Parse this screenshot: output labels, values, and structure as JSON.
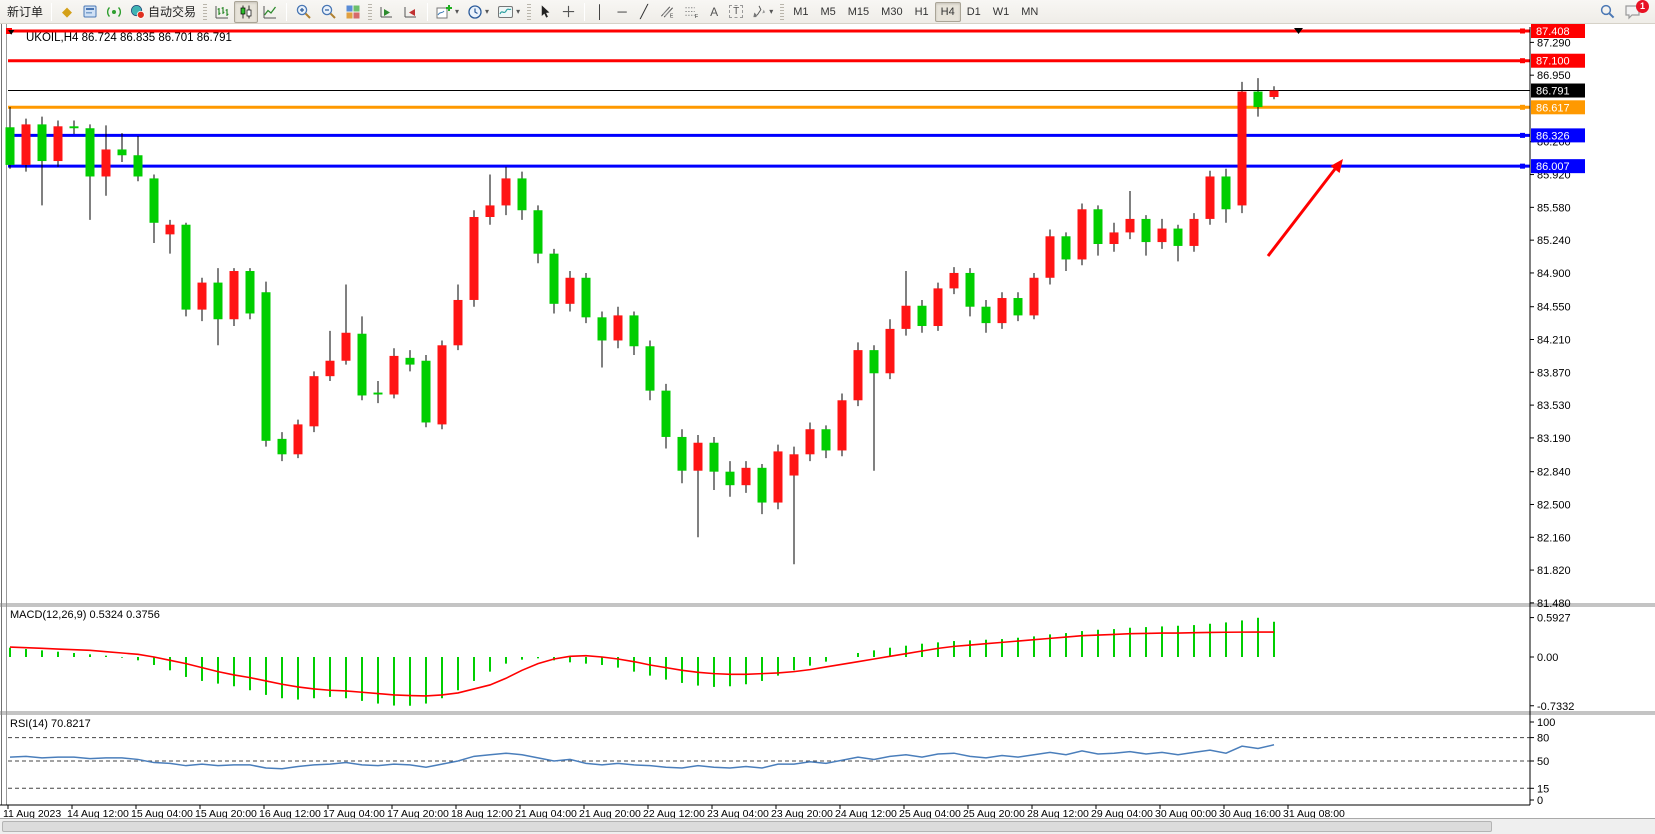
{
  "toolbar": {
    "new_order_label": "新订单",
    "auto_trading_label": "自动交易",
    "timeframes": [
      "M1",
      "M5",
      "M15",
      "M30",
      "H1",
      "H4",
      "D1",
      "W1",
      "MN"
    ],
    "active_timeframe": "H4",
    "notification_count": "1",
    "icons": {
      "market_watch": "◆",
      "crosshair": "┼",
      "vertical_line": "│",
      "horizontal_line": "─",
      "trend_line": "╱",
      "channel": "∥",
      "fibonacci": "F",
      "text_tool": "A",
      "text_label_tool": "T",
      "shapes_tool": "✦",
      "dropdown_caret": "▾"
    }
  },
  "chart": {
    "title": "UKOIL,H4 86.724 86.835 86.701 86.791",
    "symbol": "UKOIL,H4",
    "ohlc_text": "86.724 86.835 86.701 86.791",
    "macd_label": "MACD(12,26,9) 0.5324 0.3756",
    "rsi_label": "RSI(14) 70.8217",
    "price_axis_ticks": [
      "87.290",
      "86.950",
      "86.260",
      "85.920",
      "85.580",
      "85.240",
      "84.900",
      "84.550",
      "84.210",
      "83.870",
      "83.530",
      "83.190",
      "82.840",
      "82.500",
      "82.160",
      "81.820",
      "81.480"
    ],
    "macd_axis_ticks": [
      "0.5927",
      "0.00",
      "-0.7332"
    ],
    "rsi_axis_ticks": [
      "100",
      "80",
      "50",
      "15",
      "0"
    ],
    "time_axis_labels": [
      "11 Aug 2023",
      "14 Aug 12:00",
      "15 Aug 04:00",
      "15 Aug 20:00",
      "16 Aug 12:00",
      "17 Aug 04:00",
      "17 Aug 20:00",
      "18 Aug 12:00",
      "21 Aug 04:00",
      "21 Aug 20:00",
      "22 Aug 12:00",
      "23 Aug 04:00",
      "23 Aug 20:00",
      "24 Aug 12:00",
      "25 Aug 04:00",
      "25 Aug 20:00",
      "28 Aug 12:00",
      "29 Aug 04:00",
      "30 Aug 00:00",
      "30 Aug 16:00",
      "31 Aug 08:00"
    ],
    "price_badges": [
      {
        "label": "87.408",
        "price": 87.408,
        "bg": "#ff0000",
        "fg": "#ffffff"
      },
      {
        "label": "87.100",
        "price": 87.1,
        "bg": "#ff0000",
        "fg": "#ffffff"
      },
      {
        "label": "86.791",
        "price": 86.791,
        "bg": "#000000",
        "fg": "#ffffff"
      },
      {
        "label": "86.617",
        "price": 86.617,
        "bg": "#ff9900",
        "fg": "#ffffff"
      },
      {
        "label": "86.326",
        "price": 86.326,
        "bg": "#0000ff",
        "fg": "#ffffff"
      },
      {
        "label": "86.007",
        "price": 86.007,
        "bg": "#0000ff",
        "fg": "#ffffff"
      }
    ],
    "hlines": [
      {
        "price": 87.408,
        "color": "#ff0000",
        "width": 3,
        "handle": true
      },
      {
        "price": 87.1,
        "color": "#ff0000",
        "width": 3,
        "handle": true
      },
      {
        "price": 86.791,
        "color": "#000000",
        "width": 1,
        "handle": false
      },
      {
        "price": 86.617,
        "color": "#ff9900",
        "width": 3,
        "handle": true
      },
      {
        "price": 86.326,
        "color": "#0000ff",
        "width": 3,
        "handle": true
      },
      {
        "price": 86.007,
        "color": "#0000ff",
        "width": 3,
        "handle": true
      }
    ]
  },
  "chart_data": {
    "type": "candlestick",
    "title": "UKOIL H4 with MACD(12,26,9) and RSI(14)",
    "price_axis_range": [
      81.48,
      87.408
    ],
    "macd_axis_range": [
      -0.7332,
      0.5927
    ],
    "rsi_axis_range": [
      0,
      100
    ],
    "rsi_levels": [
      80,
      50,
      15
    ],
    "colors": {
      "bull": "#ff1414",
      "bear": "#00ce00",
      "wick": "#000000",
      "macd_hist": "#00ce00",
      "macd_signal": "#ff0000",
      "rsi_line": "#4a7ebb"
    },
    "candles": [
      [
        86.41,
        86.62,
        85.98,
        86.02
      ],
      [
        86.02,
        86.5,
        85.95,
        86.44
      ],
      [
        86.44,
        86.52,
        85.6,
        86.06
      ],
      [
        86.06,
        86.48,
        86.0,
        86.42
      ],
      [
        86.42,
        86.48,
        86.34,
        86.4
      ],
      [
        86.4,
        86.44,
        85.45,
        85.9
      ],
      [
        85.9,
        86.43,
        85.7,
        86.18
      ],
      [
        86.18,
        86.35,
        86.05,
        86.12
      ],
      [
        86.12,
        86.32,
        85.85,
        85.9
      ],
      [
        85.88,
        85.92,
        85.21,
        85.42
      ],
      [
        85.3,
        85.45,
        85.1,
        85.4
      ],
      [
        85.4,
        85.42,
        84.45,
        84.52
      ],
      [
        84.52,
        84.85,
        84.4,
        84.8
      ],
      [
        84.8,
        84.95,
        84.15,
        84.42
      ],
      [
        84.42,
        84.95,
        84.35,
        84.92
      ],
      [
        84.92,
        84.95,
        84.42,
        84.48
      ],
      [
        84.7,
        84.81,
        83.1,
        83.16
      ],
      [
        83.18,
        83.25,
        82.95,
        83.02
      ],
      [
        83.02,
        83.38,
        82.98,
        83.33
      ],
      [
        83.31,
        83.88,
        83.25,
        83.83
      ],
      [
        83.83,
        84.3,
        83.78,
        83.99
      ],
      [
        83.99,
        84.78,
        83.95,
        84.28
      ],
      [
        84.27,
        84.45,
        83.58,
        83.63
      ],
      [
        83.66,
        83.78,
        83.55,
        83.64
      ],
      [
        83.64,
        84.12,
        83.6,
        84.04
      ],
      [
        84.02,
        84.1,
        83.88,
        83.95
      ],
      [
        83.99,
        84.05,
        83.3,
        83.35
      ],
      [
        83.33,
        84.2,
        83.28,
        84.15
      ],
      [
        84.15,
        84.78,
        84.1,
        84.62
      ],
      [
        84.62,
        85.55,
        84.55,
        85.48
      ],
      [
        85.48,
        85.92,
        85.4,
        85.6
      ],
      [
        85.6,
        86.0,
        85.5,
        85.88
      ],
      [
        85.88,
        85.95,
        85.45,
        85.55
      ],
      [
        85.55,
        85.6,
        85.0,
        85.1
      ],
      [
        85.1,
        85.15,
        84.48,
        84.58
      ],
      [
        84.58,
        84.92,
        84.5,
        84.85
      ],
      [
        84.85,
        84.9,
        84.38,
        84.44
      ],
      [
        84.44,
        84.5,
        83.92,
        84.2
      ],
      [
        84.2,
        84.55,
        84.12,
        84.46
      ],
      [
        84.46,
        84.5,
        84.05,
        84.14
      ],
      [
        84.14,
        84.2,
        83.58,
        83.68
      ],
      [
        83.68,
        83.75,
        83.08,
        83.2
      ],
      [
        83.2,
        83.28,
        82.72,
        82.85
      ],
      [
        82.85,
        83.22,
        82.16,
        83.14
      ],
      [
        83.14,
        83.2,
        82.65,
        82.84
      ],
      [
        82.84,
        82.95,
        82.58,
        82.7
      ],
      [
        82.7,
        82.95,
        82.62,
        82.88
      ],
      [
        82.88,
        82.92,
        82.4,
        82.52
      ],
      [
        82.52,
        83.12,
        82.45,
        83.05
      ],
      [
        82.8,
        83.1,
        81.88,
        83.02
      ],
      [
        83.02,
        83.35,
        82.95,
        83.28
      ],
      [
        83.28,
        83.32,
        82.98,
        83.06
      ],
      [
        83.06,
        83.65,
        83.0,
        83.58
      ],
      [
        83.58,
        84.18,
        83.52,
        84.1
      ],
      [
        84.1,
        84.15,
        82.85,
        83.86
      ],
      [
        83.86,
        84.42,
        83.8,
        84.32
      ],
      [
        84.32,
        84.92,
        84.25,
        84.56
      ],
      [
        84.56,
        84.62,
        84.28,
        84.35
      ],
      [
        84.35,
        84.8,
        84.3,
        84.74
      ],
      [
        84.74,
        84.96,
        84.68,
        84.9
      ],
      [
        84.9,
        84.95,
        84.45,
        84.55
      ],
      [
        84.55,
        84.62,
        84.28,
        84.38
      ],
      [
        84.38,
        84.7,
        84.32,
        84.64
      ],
      [
        84.64,
        84.7,
        84.4,
        84.46
      ],
      [
        84.46,
        84.9,
        84.42,
        84.85
      ],
      [
        84.85,
        85.35,
        84.78,
        85.28
      ],
      [
        85.28,
        85.32,
        84.92,
        85.04
      ],
      [
        85.04,
        85.62,
        84.98,
        85.56
      ],
      [
        85.56,
        85.6,
        85.08,
        85.2
      ],
      [
        85.2,
        85.42,
        85.12,
        85.32
      ],
      [
        85.32,
        85.75,
        85.25,
        85.46
      ],
      [
        85.46,
        85.5,
        85.08,
        85.22
      ],
      [
        85.22,
        85.46,
        85.15,
        85.36
      ],
      [
        85.36,
        85.4,
        85.02,
        85.18
      ],
      [
        85.18,
        85.52,
        85.12,
        85.46
      ],
      [
        85.46,
        85.96,
        85.4,
        85.9
      ],
      [
        85.9,
        85.98,
        85.42,
        85.56
      ],
      [
        85.6,
        86.88,
        85.52,
        86.78
      ],
      [
        86.78,
        86.92,
        86.52,
        86.62
      ],
      [
        86.724,
        86.835,
        86.701,
        86.791
      ]
    ],
    "macd_histogram": [
      0.14,
      0.12,
      0.1,
      0.08,
      0.06,
      0.04,
      0.02,
      -0.01,
      -0.05,
      -0.12,
      -0.2,
      -0.3,
      -0.36,
      -0.4,
      -0.44,
      -0.5,
      -0.57,
      -0.62,
      -0.64,
      -0.62,
      -0.6,
      -0.62,
      -0.66,
      -0.7,
      -0.73,
      -0.733,
      -0.7,
      -0.62,
      -0.5,
      -0.36,
      -0.22,
      -0.1,
      -0.04,
      -0.02,
      -0.05,
      -0.08,
      -0.1,
      -0.12,
      -0.16,
      -0.22,
      -0.28,
      -0.34,
      -0.39,
      -0.43,
      -0.45,
      -0.44,
      -0.41,
      -0.36,
      -0.28,
      -0.2,
      -0.13,
      -0.07,
      0.0,
      0.06,
      0.1,
      0.14,
      0.17,
      0.2,
      0.22,
      0.24,
      0.25,
      0.26,
      0.27,
      0.29,
      0.31,
      0.34,
      0.36,
      0.39,
      0.41,
      0.42,
      0.44,
      0.45,
      0.46,
      0.47,
      0.48,
      0.5,
      0.52,
      0.55,
      0.59,
      0.53
    ],
    "macd_signal": [
      0.15,
      0.14,
      0.13,
      0.12,
      0.11,
      0.1,
      0.08,
      0.06,
      0.04,
      0.0,
      -0.05,
      -0.1,
      -0.16,
      -0.22,
      -0.27,
      -0.31,
      -0.36,
      -0.41,
      -0.45,
      -0.48,
      -0.5,
      -0.51,
      -0.53,
      -0.55,
      -0.57,
      -0.58,
      -0.585,
      -0.57,
      -0.54,
      -0.48,
      -0.42,
      -0.32,
      -0.2,
      -0.1,
      -0.03,
      0.01,
      0.02,
      0.0,
      -0.03,
      -0.07,
      -0.12,
      -0.16,
      -0.2,
      -0.23,
      -0.25,
      -0.26,
      -0.26,
      -0.25,
      -0.24,
      -0.22,
      -0.19,
      -0.15,
      -0.11,
      -0.07,
      -0.03,
      0.01,
      0.05,
      0.09,
      0.13,
      0.16,
      0.18,
      0.2,
      0.22,
      0.24,
      0.26,
      0.28,
      0.3,
      0.32,
      0.33,
      0.34,
      0.35,
      0.355,
      0.36,
      0.36,
      0.365,
      0.37,
      0.372,
      0.374,
      0.375,
      0.3756
    ],
    "rsi": [
      55,
      56,
      54,
      55,
      55,
      53,
      54,
      54,
      52,
      48,
      47,
      44,
      46,
      44,
      45,
      45,
      41,
      40,
      43,
      45,
      46,
      48,
      45,
      44,
      46,
      45,
      42,
      46,
      50,
      56,
      58,
      60,
      58,
      54,
      50,
      52,
      47,
      45,
      47,
      45,
      44,
      42,
      41,
      44,
      42,
      41,
      43,
      41,
      46,
      46,
      49,
      47,
      51,
      55,
      52,
      56,
      58,
      55,
      59,
      60,
      56,
      54,
      57,
      55,
      58,
      61,
      58,
      63,
      59,
      60,
      62,
      59,
      61,
      58,
      61,
      64,
      60,
      69,
      66,
      70.8
    ],
    "annotation_arrow": {
      "color": "#ff0000",
      "from_xy": [
        1268,
        232
      ],
      "to_xy": [
        1343,
        135
      ]
    }
  }
}
